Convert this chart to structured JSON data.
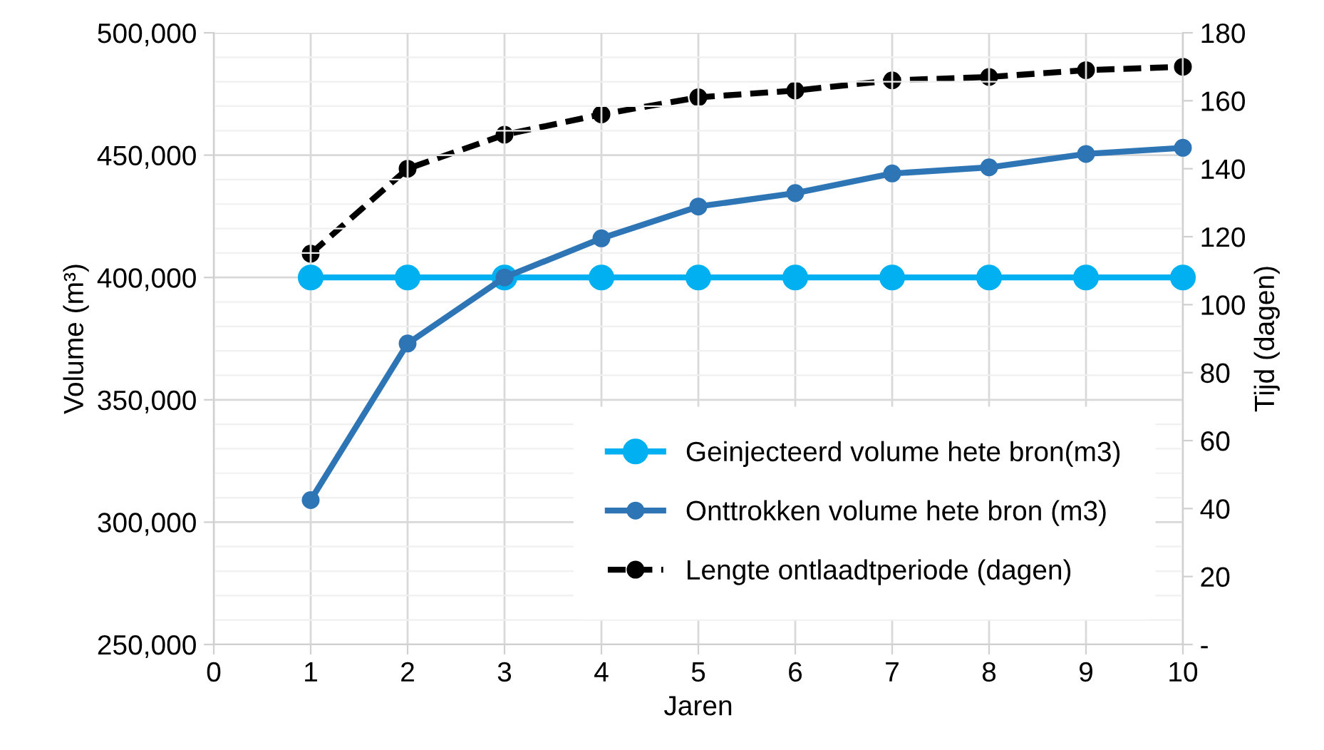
{
  "chart_data": {
    "type": "line",
    "xlabel": "Jaren",
    "ylabel": "Volume (m³)",
    "y2label": "Tijd (dagen)",
    "x": [
      1,
      2,
      3,
      4,
      5,
      6,
      7,
      8,
      9,
      10
    ],
    "xlim": [
      0,
      10
    ],
    "xticks": [
      0,
      1,
      2,
      3,
      4,
      5,
      6,
      7,
      8,
      9,
      10
    ],
    "ylim": [
      250000,
      500000
    ],
    "yticks": [
      {
        "value": 250000,
        "label": "250,000"
      },
      {
        "value": 300000,
        "label": "300,000"
      },
      {
        "value": 350000,
        "label": "350,000"
      },
      {
        "value": 400000,
        "label": "400,000"
      },
      {
        "value": 450000,
        "label": "450,000"
      },
      {
        "value": 500000,
        "label": "500,000"
      }
    ],
    "y2lim": [
      0,
      180
    ],
    "y2ticks": [
      {
        "value": 0,
        "label": "-"
      },
      20,
      40,
      60,
      80,
      100,
      120,
      140,
      160,
      180
    ],
    "grid": true,
    "legend": "bottom right",
    "marker": "circle",
    "series": [
      {
        "name": "Geinjecteerd volume hete bron(m3)",
        "color": "#00b0f0",
        "line_style": "solid",
        "values": [
          400000,
          400000,
          400000,
          400000,
          400000,
          400000,
          400000,
          400000,
          400000,
          400000
        ]
      },
      {
        "name": "Onttrokken volume hete bron (m3)",
        "color": "#2e75b6",
        "line_style": "solid",
        "values": [
          309000,
          373000,
          400000,
          416000,
          429000,
          434500,
          442500,
          445000,
          450500,
          453000
        ]
      },
      {
        "name": "Lengte ontlaadtperiode (dagen)",
        "color": "#000000",
        "line_style": "dashed",
        "axis": "y2",
        "values": [
          115,
          140,
          150,
          156,
          161,
          163,
          166,
          167,
          169,
          170
        ]
      }
    ]
  }
}
